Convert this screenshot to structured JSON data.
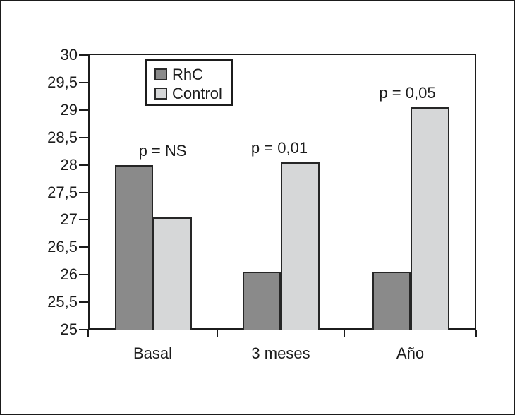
{
  "figure": {
    "background": "#ffffff",
    "frame_color": "#1b1b1b",
    "text_color": "#1c1c1c"
  },
  "chart_data": {
    "type": "bar",
    "title": "",
    "xlabel": "",
    "ylabel": "",
    "categories": [
      "Basal",
      "3 meses",
      "Año"
    ],
    "series": [
      {
        "name": "RhC",
        "color": "#8a8a8a",
        "values": [
          28.0,
          26.05,
          26.05
        ]
      },
      {
        "name": "Control",
        "color": "#d6d7d8",
        "values": [
          27.05,
          28.05,
          29.05
        ]
      }
    ],
    "annotations": [
      {
        "label": "p = NS",
        "group": 0
      },
      {
        "label": "p = 0,01",
        "group": 1
      },
      {
        "label": "p = 0,05",
        "group": 2
      }
    ],
    "ylim": [
      25,
      30
    ],
    "ytick_step": 0.5,
    "yticks": [
      "30",
      "29,5",
      "29",
      "28,5",
      "28",
      "27,5",
      "27",
      "26,5",
      "26",
      "25,5",
      "25"
    ],
    "grid": false,
    "legend_position": "top-center-inside",
    "decimal_separator": ","
  }
}
